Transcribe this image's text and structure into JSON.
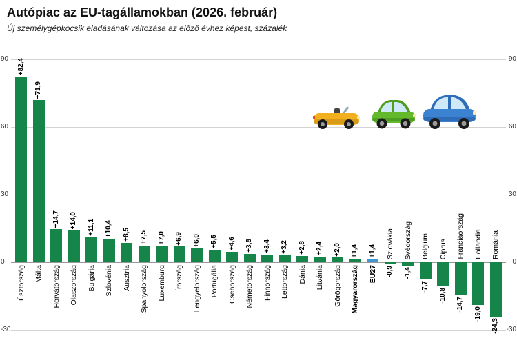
{
  "header": {
    "title": "Autópiac az EU-tagállamokban (2026. február)",
    "subtitle": "Új személygépkocsik eladásának változása az előző évhez képest, százalék"
  },
  "axis": {
    "ticks": [
      90,
      60,
      30,
      0,
      -30
    ]
  },
  "chart_data": {
    "type": "bar",
    "title": "Autópiac az EU-tagállamokban (2026. február)",
    "subtitle": "Új személygépkocsik eladásának változása az előző évhez képest, százalék",
    "ylim": [
      -30,
      90
    ],
    "grid": true,
    "bar_color": "#15854a",
    "eu_color": "#3e97d4",
    "items": [
      {
        "name": "Észtország",
        "value": 82.4,
        "label": "+82,4"
      },
      {
        "name": "Málta",
        "value": 71.9,
        "label": "+71,9"
      },
      {
        "name": "Horvátország",
        "value": 14.7,
        "label": "+14,7"
      },
      {
        "name": "Olaszország",
        "value": 14.0,
        "label": "+14,0"
      },
      {
        "name": "Bulgária",
        "value": 11.1,
        "label": "+11,1"
      },
      {
        "name": "Szlovénia",
        "value": 10.4,
        "label": "+10,4"
      },
      {
        "name": "Ausztria",
        "value": 8.5,
        "label": "+8,5"
      },
      {
        "name": "Spanyolország",
        "value": 7.5,
        "label": "+7,5"
      },
      {
        "name": "Luxemburg",
        "value": 7.0,
        "label": "+7,0"
      },
      {
        "name": "Írország",
        "value": 6.9,
        "label": "+6,9"
      },
      {
        "name": "Lengyelország",
        "value": 6.0,
        "label": "+6,0"
      },
      {
        "name": "Portugália",
        "value": 5.5,
        "label": "+5,5"
      },
      {
        "name": "Csehország",
        "value": 4.6,
        "label": "+4,6"
      },
      {
        "name": "Németország",
        "value": 3.8,
        "label": "+3,8"
      },
      {
        "name": "Finnország",
        "value": 3.4,
        "label": "+3,4"
      },
      {
        "name": "Lettország",
        "value": 3.2,
        "label": "+3,2"
      },
      {
        "name": "Dánia",
        "value": 2.8,
        "label": "+2,8"
      },
      {
        "name": "Litvánia",
        "value": 2.4,
        "label": "+2,4"
      },
      {
        "name": "Görögország",
        "value": 2.0,
        "label": "+2,0"
      },
      {
        "name": "Magyarország",
        "value": 1.4,
        "label": "+1,4",
        "bold": true
      },
      {
        "name": "EU27",
        "value": 1.4,
        "label": "+1,4",
        "bold": true,
        "color": "#3e97d4"
      },
      {
        "name": "Szlovákia",
        "value": -0.9,
        "label": "-0,9"
      },
      {
        "name": "Svédország",
        "value": -1.4,
        "label": "-1,4"
      },
      {
        "name": "Belgium",
        "value": -7.7,
        "label": "-7,7"
      },
      {
        "name": "Ciprus",
        "value": -10.8,
        "label": "-10,8"
      },
      {
        "name": "Franciaország",
        "value": -14.7,
        "label": "-14,7"
      },
      {
        "name": "Hollandia",
        "value": -19.0,
        "label": "-19,0"
      },
      {
        "name": "Románia",
        "value": -24.3,
        "label": "-24,3"
      }
    ]
  },
  "icons": {
    "cars": [
      {
        "name": "cabrio-car-icon",
        "color": "#f2b01e"
      },
      {
        "name": "green-car-icon",
        "color": "#63b82c"
      },
      {
        "name": "blue-car-icon",
        "color": "#3b82d0"
      }
    ]
  }
}
